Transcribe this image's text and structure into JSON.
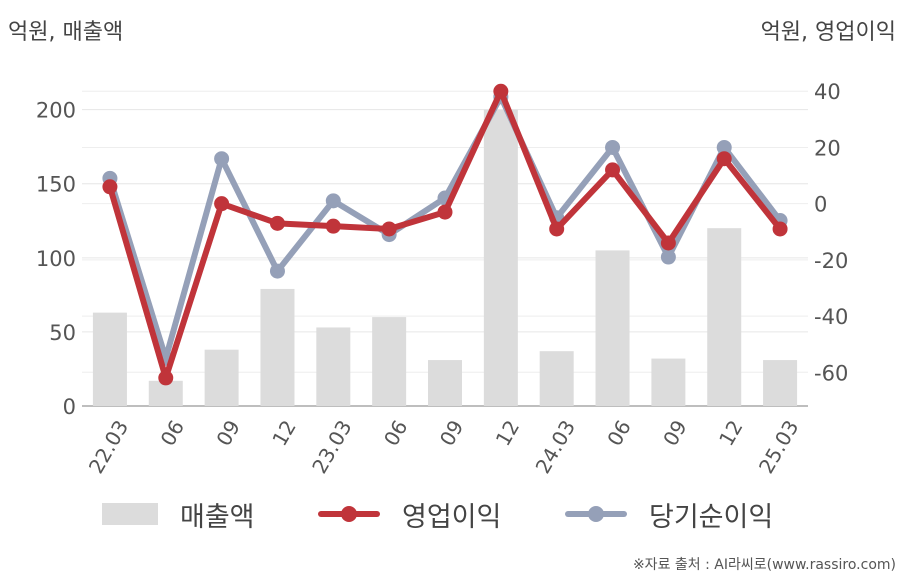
{
  "units": {
    "left": "억원, 매출액",
    "right": "억원, 영업이익"
  },
  "chart_data": {
    "type": "bar+line",
    "categories": [
      "22.03",
      "06",
      "09",
      "12",
      "23.03",
      "06",
      "09",
      "12",
      "24.03",
      "06",
      "09",
      "12",
      "25.03"
    ],
    "left_axis": {
      "ylim": [
        0,
        220
      ],
      "ticks": [
        0,
        50,
        100,
        150,
        200
      ]
    },
    "right_axis": {
      "ylim": [
        -72,
        44
      ],
      "ticks": [
        -60,
        -40,
        -20,
        0,
        20,
        40
      ]
    },
    "series": [
      {
        "name": "매출액",
        "kind": "bar",
        "axis": "left",
        "color": "#dcdcdc",
        "values": [
          63,
          17,
          38,
          79,
          53,
          60,
          31,
          200,
          37,
          105,
          32,
          120,
          31
        ]
      },
      {
        "name": "영업이익",
        "kind": "line",
        "axis": "right",
        "color": "#c0343a",
        "values": [
          6,
          -62,
          0,
          -7,
          -8,
          -9,
          -3,
          40,
          -9,
          12,
          -14,
          16,
          -9
        ]
      },
      {
        "name": "당기순이익",
        "kind": "line",
        "axis": "right",
        "color": "#95a0b8",
        "values": [
          9,
          -55,
          16,
          -24,
          1,
          -11,
          2,
          38,
          -5,
          20,
          -19,
          20,
          -6
        ]
      }
    ],
    "grid": true,
    "legend": "bottom"
  },
  "legend": {
    "revenue": "매출액",
    "operating_profit": "영업이익",
    "net_income": "당기순이익"
  },
  "source": "※자료 출처 : AI라씨로(www.rassiro.com)"
}
